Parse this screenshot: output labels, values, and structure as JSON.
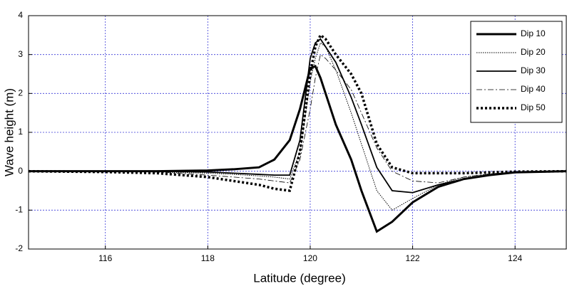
{
  "chart_data": {
    "type": "line",
    "x_label": "Latitude (degree)",
    "y_label": "Wave height (m)",
    "x": [
      114.5,
      116,
      117,
      118,
      118.5,
      119,
      119.3,
      119.6,
      119.8,
      120,
      120.1,
      120.2,
      120.3,
      120.5,
      120.8,
      121,
      121.3,
      121.6,
      122,
      122.5,
      123,
      123.5,
      124,
      125
    ],
    "series": [
      {
        "name": "Dip 10",
        "color": "#000000",
        "dash": "solid",
        "width": 3,
        "values": [
          0,
          0,
          0,
          0.02,
          0.05,
          0.1,
          0.3,
          0.8,
          1.6,
          2.65,
          2.7,
          2.4,
          2.0,
          1.2,
          0.3,
          -0.5,
          -1.55,
          -1.3,
          -0.8,
          -0.4,
          -0.2,
          -0.1,
          -0.03,
          0
        ]
      },
      {
        "name": "Dip 20",
        "color": "#000000",
        "dash": "dotted",
        "width": 1,
        "values": [
          0,
          0,
          -0.02,
          -0.05,
          -0.08,
          -0.12,
          -0.15,
          -0.2,
          0.5,
          2.3,
          2.9,
          3.3,
          3.2,
          2.6,
          1.5,
          0.7,
          -0.5,
          -1.0,
          -0.7,
          -0.35,
          -0.15,
          -0.07,
          -0.02,
          0
        ]
      },
      {
        "name": "Dip 30",
        "color": "#000000",
        "dash": "solid",
        "width": 1.8,
        "values": [
          0,
          0,
          0,
          -0.02,
          -0.05,
          -0.08,
          -0.1,
          -0.1,
          0.8,
          2.9,
          3.3,
          3.4,
          3.2,
          2.8,
          1.9,
          1.2,
          0.1,
          -0.5,
          -0.55,
          -0.35,
          -0.2,
          -0.1,
          -0.03,
          0
        ]
      },
      {
        "name": "Dip 40",
        "color": "#000000",
        "dash": "dashdot",
        "width": 0.8,
        "values": [
          0,
          0,
          -0.02,
          -0.1,
          -0.15,
          -0.2,
          -0.25,
          -0.3,
          0.3,
          1.6,
          2.4,
          3.0,
          2.9,
          2.6,
          2.1,
          1.5,
          0.6,
          0.0,
          -0.25,
          -0.3,
          -0.15,
          -0.07,
          -0.02,
          0
        ]
      },
      {
        "name": "Dip 50",
        "color": "#000000",
        "dash": "dotted",
        "width": 3.5,
        "values": [
          0,
          -0.02,
          -0.05,
          -0.15,
          -0.25,
          -0.35,
          -0.45,
          -0.5,
          0.5,
          2.5,
          3.2,
          3.5,
          3.4,
          3.0,
          2.5,
          2.0,
          0.7,
          0.1,
          -0.05,
          -0.05,
          -0.05,
          -0.03,
          -0.01,
          0
        ]
      }
    ],
    "xlim": [
      114.5,
      125
    ],
    "xticks": [
      116,
      118,
      120,
      122,
      124
    ],
    "ylim": [
      -2,
      4
    ],
    "yticks": [
      -2,
      -1,
      0,
      1,
      2,
      3,
      4
    ],
    "grid": true,
    "legend": "upper right"
  }
}
